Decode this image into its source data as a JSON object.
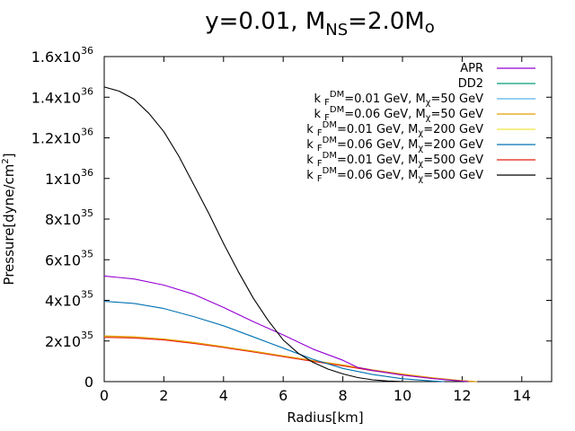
{
  "chart_data": {
    "type": "line",
    "title": {
      "main": "y=0.01, M",
      "mass_sub": "NS",
      "mass_val": "=2.0M",
      "sun_sub": "o"
    },
    "xlabel": "Radius[km]",
    "ylabel": {
      "text": "Pressure[dyne/cm",
      "sup": "2",
      "close": "]"
    },
    "xlim": [
      0,
      15
    ],
    "ylim": [
      0,
      1.6e+36
    ],
    "x_ticks": [
      0,
      2,
      4,
      6,
      8,
      10,
      12,
      14
    ],
    "x_tick_labels": [
      "0",
      "2",
      "4",
      "6",
      "8",
      "10",
      "12",
      "14"
    ],
    "y_ticks": [
      {
        "value": 0,
        "mantissa": "0",
        "exp": ""
      },
      {
        "value": 2e+35,
        "mantissa": "2x10",
        "exp": "35"
      },
      {
        "value": 4e+35,
        "mantissa": "4x10",
        "exp": "35"
      },
      {
        "value": 6e+35,
        "mantissa": "6x10",
        "exp": "35"
      },
      {
        "value": 8e+35,
        "mantissa": "8x10",
        "exp": "35"
      },
      {
        "value": 1e+36,
        "mantissa": "1x10",
        "exp": "36"
      },
      {
        "value": 1.2e+36,
        "mantissa": "1.2x10",
        "exp": "36"
      },
      {
        "value": 1.4e+36,
        "mantissa": "1.4x10",
        "exp": "36"
      },
      {
        "value": 1.6e+36,
        "mantissa": "1.6x10",
        "exp": "36"
      }
    ],
    "legend_position": "top-right",
    "series": [
      {
        "name": "APR",
        "label": {
          "pre": "APR"
        },
        "color": "#9400d3",
        "x": [
          0,
          1,
          2,
          3,
          4,
          5,
          6,
          7,
          8,
          8.5,
          9,
          10,
          11,
          12,
          12.2
        ],
        "y": [
          5.2e+35,
          5.05e+35,
          4.75e+35,
          4.3e+35,
          3.65e+35,
          2.95e+35,
          2.3e+35,
          1.6e+35,
          1.05e+35,
          7e+34,
          5.5e+34,
          3.2e+34,
          1.5e+34,
          2e+33,
          0
        ]
      },
      {
        "name": "DD2",
        "label": {
          "pre": "DD2"
        },
        "color": "#009e73",
        "x": [
          0,
          1,
          2,
          3,
          4,
          5,
          6,
          7,
          8,
          9,
          10,
          11,
          12,
          12.4
        ],
        "y": [
          2.2e+35,
          2.17e+35,
          2.07e+35,
          1.9e+35,
          1.7e+35,
          1.48e+35,
          1.25e+35,
          1.02e+35,
          8e+34,
          5.5e+34,
          3.5e+34,
          1.7e+34,
          4e+33,
          0
        ]
      },
      {
        "name": "kF_DM=0.01 GeV, M_chi=50 GeV",
        "label": {
          "k": "k",
          "F": "F",
          "DM": "DM",
          "mid": "=0.01 GeV, M",
          "chi": "χ",
          "post": "=50 GeV"
        },
        "color": "#56b4e9",
        "x": [
          0,
          1,
          2,
          3,
          4,
          5,
          6,
          7,
          8,
          9,
          10,
          11,
          12,
          12.4
        ],
        "y": [
          2.2e+35,
          2.17e+35,
          2.07e+35,
          1.9e+35,
          1.7e+35,
          1.48e+35,
          1.25e+35,
          1.02e+35,
          8e+34,
          5.5e+34,
          3.5e+34,
          1.7e+34,
          4e+33,
          0
        ]
      },
      {
        "name": "kF_DM=0.06 GeV, M_chi=50 GeV",
        "label": {
          "k": "k",
          "F": "F",
          "DM": "DM",
          "mid": "=0.06 GeV, M",
          "chi": "χ",
          "post": "=50 GeV"
        },
        "color": "#e69f00",
        "x": [
          0,
          1,
          2,
          3,
          4,
          5,
          6,
          7,
          8,
          9,
          10,
          11,
          12,
          12.5
        ],
        "y": [
          2.25e+35,
          2.21e+35,
          2.1e+35,
          1.93e+35,
          1.72e+35,
          1.5e+35,
          1.27e+35,
          1.04e+35,
          8.2e+34,
          5.8e+34,
          3.7e+34,
          1.9e+34,
          5e+33,
          0
        ]
      },
      {
        "name": "kF_DM=0.01 GeV, M_chi=200 GeV",
        "label": {
          "k": "k",
          "F": "F",
          "DM": "DM",
          "mid": "=0.01 GeV, M",
          "chi": "χ",
          "post": "=200 GeV"
        },
        "color": "#f0e442",
        "x": [
          0,
          1,
          2,
          3,
          4,
          5,
          6,
          7,
          8,
          9,
          10,
          11,
          12,
          12.4
        ],
        "y": [
          2.2e+35,
          2.17e+35,
          2.07e+35,
          1.9e+35,
          1.7e+35,
          1.48e+35,
          1.25e+35,
          1.02e+35,
          8e+34,
          5.5e+34,
          3.5e+34,
          1.7e+34,
          4e+33,
          0
        ]
      },
      {
        "name": "kF_DM=0.06 GeV, M_chi=200 GeV",
        "label": {
          "k": "k",
          "F": "F",
          "DM": "DM",
          "mid": "=0.06 GeV, M",
          "chi": "χ",
          "post": "=200 GeV"
        },
        "color": "#0072b2",
        "x": [
          0,
          1,
          2,
          3,
          4,
          5,
          6,
          7,
          8,
          9,
          10,
          11,
          11.4
        ],
        "y": [
          3.95e+35,
          3.85e+35,
          3.6e+35,
          3.2e+35,
          2.75e+35,
          2.2e+35,
          1.65e+35,
          1.1e+35,
          6.5e+34,
          3.5e+34,
          1.4e+34,
          3e+33,
          0
        ]
      },
      {
        "name": "kF_DM=0.01 GeV, M_chi=500 GeV",
        "label": {
          "k": "k",
          "F": "F",
          "DM": "DM",
          "mid": "=0.01 GeV, M",
          "chi": "χ",
          "post": "=500 GeV"
        },
        "color": "#e51e10",
        "x": [
          0,
          1,
          2,
          3,
          4,
          5,
          6,
          7,
          8,
          9,
          10,
          11,
          12,
          12.4
        ],
        "y": [
          2.18e+35,
          2.15e+35,
          2.05e+35,
          1.88e+35,
          1.68e+35,
          1.46e+35,
          1.23e+35,
          1e+35,
          7.8e+34,
          5.4e+34,
          3.4e+34,
          1.6e+34,
          4e+33,
          0
        ]
      },
      {
        "name": "kF_DM=0.06 GeV, M_chi=500 GeV",
        "label": {
          "k": "k",
          "F": "F",
          "DM": "DM",
          "mid": "=0.06 GeV, M",
          "chi": "χ",
          "post": "=500 GeV"
        },
        "color": "#000000",
        "x": [
          0,
          0.5,
          1,
          1.5,
          2,
          2.5,
          3,
          3.5,
          4,
          4.5,
          5,
          5.5,
          6,
          6.5,
          7,
          7.5,
          8,
          8.5,
          9,
          9.5,
          10,
          10.3
        ],
        "y": [
          1.45e+36,
          1.43e+36,
          1.39e+36,
          1.32e+36,
          1.23e+36,
          1.11e+36,
          9.7e+35,
          8.3e+35,
          6.8e+35,
          5.4e+35,
          4.1e+35,
          3e+35,
          2.05e+35,
          1.4e+35,
          9.5e+34,
          6.2e+34,
          3.8e+34,
          2e+34,
          9e+33,
          3e+33,
          5e+32,
          0
        ]
      }
    ]
  }
}
